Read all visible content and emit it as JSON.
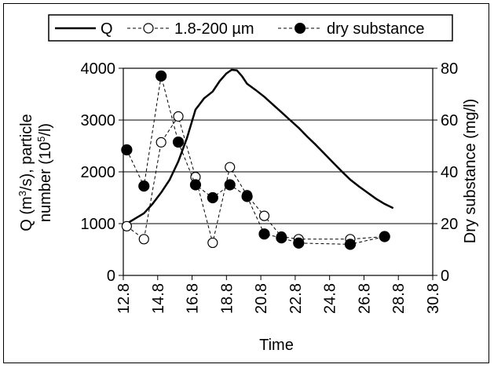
{
  "chart_data": {
    "type": "line",
    "xlabel": "Time",
    "ylabel_line1": "Q  (m",
    "ylabel_sup1": "3",
    "ylabel_mid1": "/s),  particle",
    "ylabel_line2": "number  (10",
    "ylabel_sup2": "5",
    "ylabel_end2": "/l)",
    "y2label": "Dry substance (mg/l)",
    "xlim": [
      12.8,
      30.8
    ],
    "ylim": [
      0,
      4000
    ],
    "y2lim": [
      0,
      80
    ],
    "x_ticks": [
      "12.8",
      "14.8",
      "16.8",
      "18.8",
      "20.8",
      "22.8",
      "24.8",
      "26.8",
      "28.8",
      "30.8"
    ],
    "y_ticks": [
      "0",
      "1000",
      "2000",
      "3000",
      "4000"
    ],
    "y2_ticks": [
      "0",
      "20",
      "40",
      "60",
      "80"
    ],
    "grid": true,
    "legend_position": "top",
    "series": [
      {
        "name": "Q",
        "axis": "left",
        "style": "solid",
        "x": [
          13.0,
          13.5,
          14.0,
          14.5,
          15.0,
          15.5,
          16.0,
          16.5,
          17.0,
          17.5,
          18.0,
          18.4,
          18.8,
          19.1,
          19.4,
          19.7,
          20.0,
          20.5,
          21.0,
          21.5,
          22.0,
          22.5,
          23.0,
          23.5,
          24.0,
          24.5,
          25.0,
          25.5,
          26.0,
          26.5,
          27.0,
          27.5,
          28.0,
          28.5
        ],
        "y": [
          1000,
          1100,
          1200,
          1380,
          1600,
          1850,
          2200,
          2650,
          3200,
          3420,
          3550,
          3750,
          3900,
          3970,
          3960,
          3850,
          3700,
          3580,
          3450,
          3300,
          3150,
          3000,
          2850,
          2680,
          2520,
          2350,
          2180,
          2010,
          1850,
          1720,
          1600,
          1480,
          1380,
          1300
        ]
      },
      {
        "name": "1.8-200 µm",
        "axis": "left",
        "style": "dashed-open-circle",
        "x": [
          13.0,
          14.0,
          15.0,
          16.0,
          17.0,
          18.0,
          19.0,
          20.0,
          21.0,
          22.0,
          23.0,
          26.0,
          28.0
        ],
        "y": [
          950,
          700,
          2570,
          3070,
          1900,
          630,
          2090,
          1550,
          1150,
          750,
          700,
          700,
          750
        ]
      },
      {
        "name": "dry substance",
        "axis": "right",
        "style": "dashed-filled-circle",
        "x": [
          13.0,
          14.0,
          15.0,
          16.0,
          17.0,
          18.0,
          19.0,
          20.0,
          21.0,
          22.0,
          23.0,
          26.0,
          28.0
        ],
        "y": [
          48.5,
          34.5,
          77,
          51.5,
          35,
          30,
          35,
          30.5,
          16,
          14.5,
          12.5,
          12,
          15
        ]
      }
    ]
  }
}
